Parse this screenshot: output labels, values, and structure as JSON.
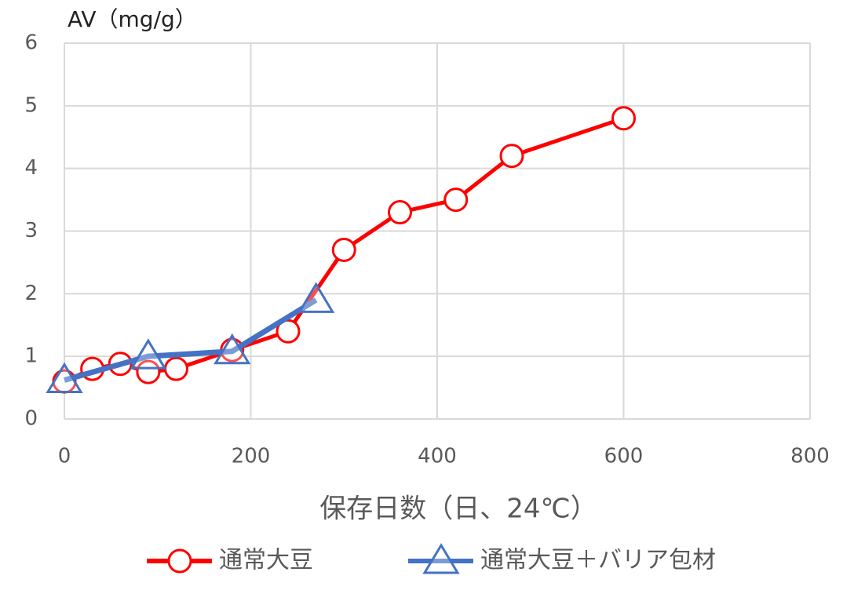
{
  "chart_data": {
    "type": "line",
    "y_label": "AV（mg/g）",
    "x_label": "保存日数（日、24℃）",
    "xlim": [
      0,
      800
    ],
    "xticks": [
      0,
      200,
      400,
      600,
      800
    ],
    "ylim": [
      0,
      6
    ],
    "yticks": [
      0,
      1,
      2,
      3,
      4,
      5,
      6
    ],
    "grid": true,
    "legend": "bottom",
    "series": [
      {
        "name": "通常大豆",
        "color": "#ff0000",
        "marker": "circle",
        "x": [
          0,
          30,
          60,
          90,
          120,
          180,
          240,
          300,
          360,
          420,
          480,
          600
        ],
        "values": [
          0.6,
          0.8,
          0.88,
          0.75,
          0.8,
          1.1,
          1.4,
          2.7,
          3.3,
          3.5,
          4.2,
          4.8
        ]
      },
      {
        "name": "通常大豆＋バリア包材",
        "color": "#4472c4",
        "marker": "triangle",
        "x": [
          0,
          90,
          180,
          270
        ],
        "values": [
          0.62,
          1.0,
          1.08,
          1.9
        ]
      }
    ]
  }
}
